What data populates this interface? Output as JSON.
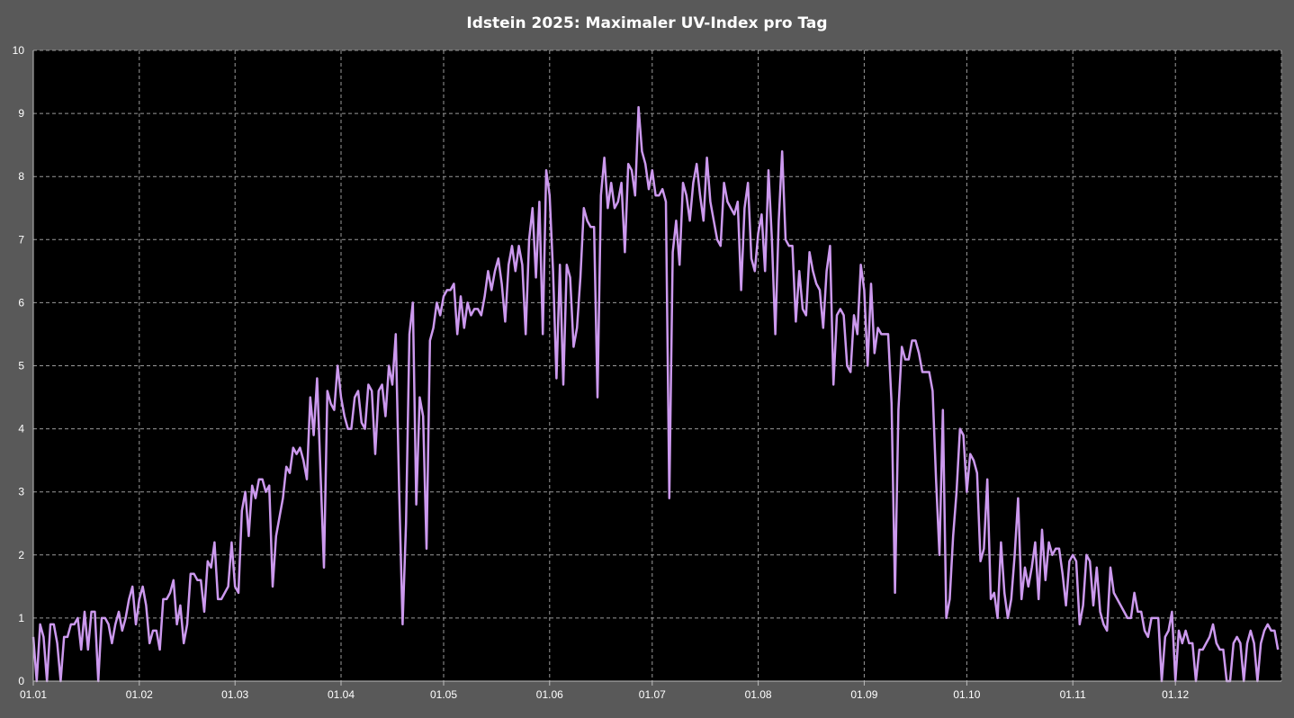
{
  "chart_data": {
    "type": "line",
    "title": "Idstein 2025:  Maximaler UV-Index pro Tag",
    "xlabel": "",
    "ylabel": "",
    "ylim": [
      0,
      10
    ],
    "yticks": [
      "0",
      "1",
      "2",
      "3",
      "4",
      "5",
      "6",
      "7",
      "8",
      "9",
      "10"
    ],
    "grid": true,
    "colors": {
      "line": "#cc99ee",
      "plot_background": "#000000",
      "background": "#595959",
      "grid": "#9a9a9a"
    },
    "months": [
      {
        "label": "01.01",
        "values": [
          0.7,
          0,
          0.9,
          0.7,
          0,
          0.9,
          0.9,
          0.6,
          0,
          0.7,
          0.7,
          0.9,
          0.9,
          1.0,
          0.5,
          1.1,
          0.5,
          1.1,
          1.1,
          0,
          1.0,
          1.0,
          0.9,
          0.6,
          0.9,
          1.1,
          0.8,
          1.0,
          1.3,
          1.5,
          0.9
        ]
      },
      {
        "label": "01.02",
        "values": [
          1.3,
          1.5,
          1.2,
          0.6,
          0.8,
          0.8,
          0.5,
          1.3,
          1.3,
          1.4,
          1.6,
          0.9,
          1.2,
          0.6,
          0.9,
          1.7,
          1.7,
          1.6,
          1.6,
          1.1,
          1.9,
          1.8,
          2.2,
          1.3,
          1.3,
          1.4,
          1.5,
          2.2
        ]
      },
      {
        "label": "01.03",
        "values": [
          1.5,
          1.4,
          2.7,
          3.0,
          2.3,
          3.1,
          2.9,
          3.2,
          3.2,
          3.0,
          3.1,
          1.5,
          2.3,
          2.6,
          2.9,
          3.4,
          3.3,
          3.7,
          3.6,
          3.7,
          3.5,
          3.2,
          4.5,
          3.9,
          4.8,
          3.3,
          1.8,
          4.6,
          4.4,
          4.3,
          5.0
        ]
      },
      {
        "label": "01.04",
        "values": [
          4.5,
          4.2,
          4.0,
          4.0,
          4.5,
          4.6,
          4.1,
          4.0,
          4.7,
          4.6,
          3.6,
          4.6,
          4.7,
          4.2,
          5.0,
          4.7,
          5.5,
          3.0,
          0.9,
          2.5,
          5.5,
          6.0,
          2.8,
          4.5,
          4.2,
          2.1,
          5.4,
          5.6,
          6.0,
          5.8
        ]
      },
      {
        "label": "01.05",
        "values": [
          6.1,
          6.2,
          6.2,
          6.3,
          5.5,
          6.1,
          5.6,
          6.0,
          5.8,
          5.9,
          5.9,
          5.8,
          6.1,
          6.5,
          6.2,
          6.5,
          6.7,
          6.3,
          5.7,
          6.6,
          6.9,
          6.5,
          6.9,
          6.6,
          5.5,
          7.0,
          7.5,
          6.4,
          7.6,
          5.5,
          8.1
        ]
      },
      {
        "label": "01.06",
        "values": [
          7.7,
          6.5,
          4.8,
          6.6,
          4.7,
          6.6,
          6.4,
          5.3,
          5.6,
          6.4,
          7.5,
          7.3,
          7.2,
          7.2,
          4.5,
          7.7,
          8.3,
          7.5,
          7.9,
          7.5,
          7.6,
          7.9,
          6.8,
          8.2,
          8.1,
          7.7,
          9.1,
          8.4,
          8.2,
          7.8
        ]
      },
      {
        "label": "01.07",
        "values": [
          8.1,
          7.7,
          7.7,
          7.8,
          7.6,
          2.9,
          6.8,
          7.3,
          6.6,
          7.9,
          7.7,
          7.3,
          7.9,
          8.2,
          7.7,
          7.3,
          8.3,
          7.6,
          7.3,
          7.0,
          6.9,
          7.9,
          7.6,
          7.5,
          7.4,
          7.6,
          6.2,
          7.5,
          7.9,
          6.7,
          6.5
        ]
      },
      {
        "label": "01.08",
        "values": [
          7.1,
          7.4,
          6.5,
          8.1,
          7.0,
          5.5,
          7.3,
          8.4,
          7.0,
          6.9,
          6.9,
          5.7,
          6.5,
          5.9,
          5.8,
          6.8,
          6.5,
          6.3,
          6.2,
          5.6,
          6.5,
          6.9,
          4.7,
          5.8,
          5.9,
          5.8,
          5.0,
          4.9,
          5.8,
          5.5,
          6.6
        ]
      },
      {
        "label": "01.09",
        "values": [
          6.2,
          5.0,
          6.3,
          5.2,
          5.6,
          5.5,
          5.5,
          5.5,
          4.4,
          1.4,
          4.3,
          5.3,
          5.1,
          5.1,
          5.4,
          5.4,
          5.2,
          4.9,
          4.9,
          4.9,
          4.6,
          3.2,
          2.0,
          4.3,
          1.0,
          1.3,
          2.3,
          3.0,
          4.0,
          3.9
        ]
      },
      {
        "label": "01.10",
        "values": [
          3.0,
          3.6,
          3.5,
          3.3,
          1.9,
          2.1,
          3.2,
          1.3,
          1.4,
          1.0,
          2.2,
          1.4,
          1.0,
          1.3,
          2.0,
          2.9,
          1.3,
          1.8,
          1.5,
          1.8,
          2.2,
          1.3,
          2.4,
          1.6,
          2.2,
          2.0,
          2.1,
          2.1,
          1.7,
          1.2,
          1.9
        ]
      },
      {
        "label": "01.11",
        "values": [
          2.0,
          1.9,
          0.9,
          1.2,
          2.0,
          1.9,
          1.2,
          1.8,
          1.1,
          0.9,
          0.8,
          1.8,
          1.4,
          1.3,
          1.2,
          1.1,
          1.0,
          1.0,
          1.4,
          1.1,
          1.1,
          0.8,
          0.7,
          1.0,
          1.0,
          1.0,
          0.0,
          0.7,
          0.8,
          1.1
        ]
      },
      {
        "label": "01.12",
        "values": [
          0.0,
          0.8,
          0.6,
          0.8,
          0.6,
          0.6,
          0.0,
          0.5,
          0.5,
          0.6,
          0.7,
          0.9,
          0.6,
          0.5,
          0.5,
          0.0,
          0.0,
          0.6,
          0.7,
          0.6,
          0.0,
          0.6,
          0.8,
          0.6,
          0.0,
          0.6,
          0.8,
          0.9,
          0.8,
          0.8,
          0.5
        ]
      }
    ]
  }
}
